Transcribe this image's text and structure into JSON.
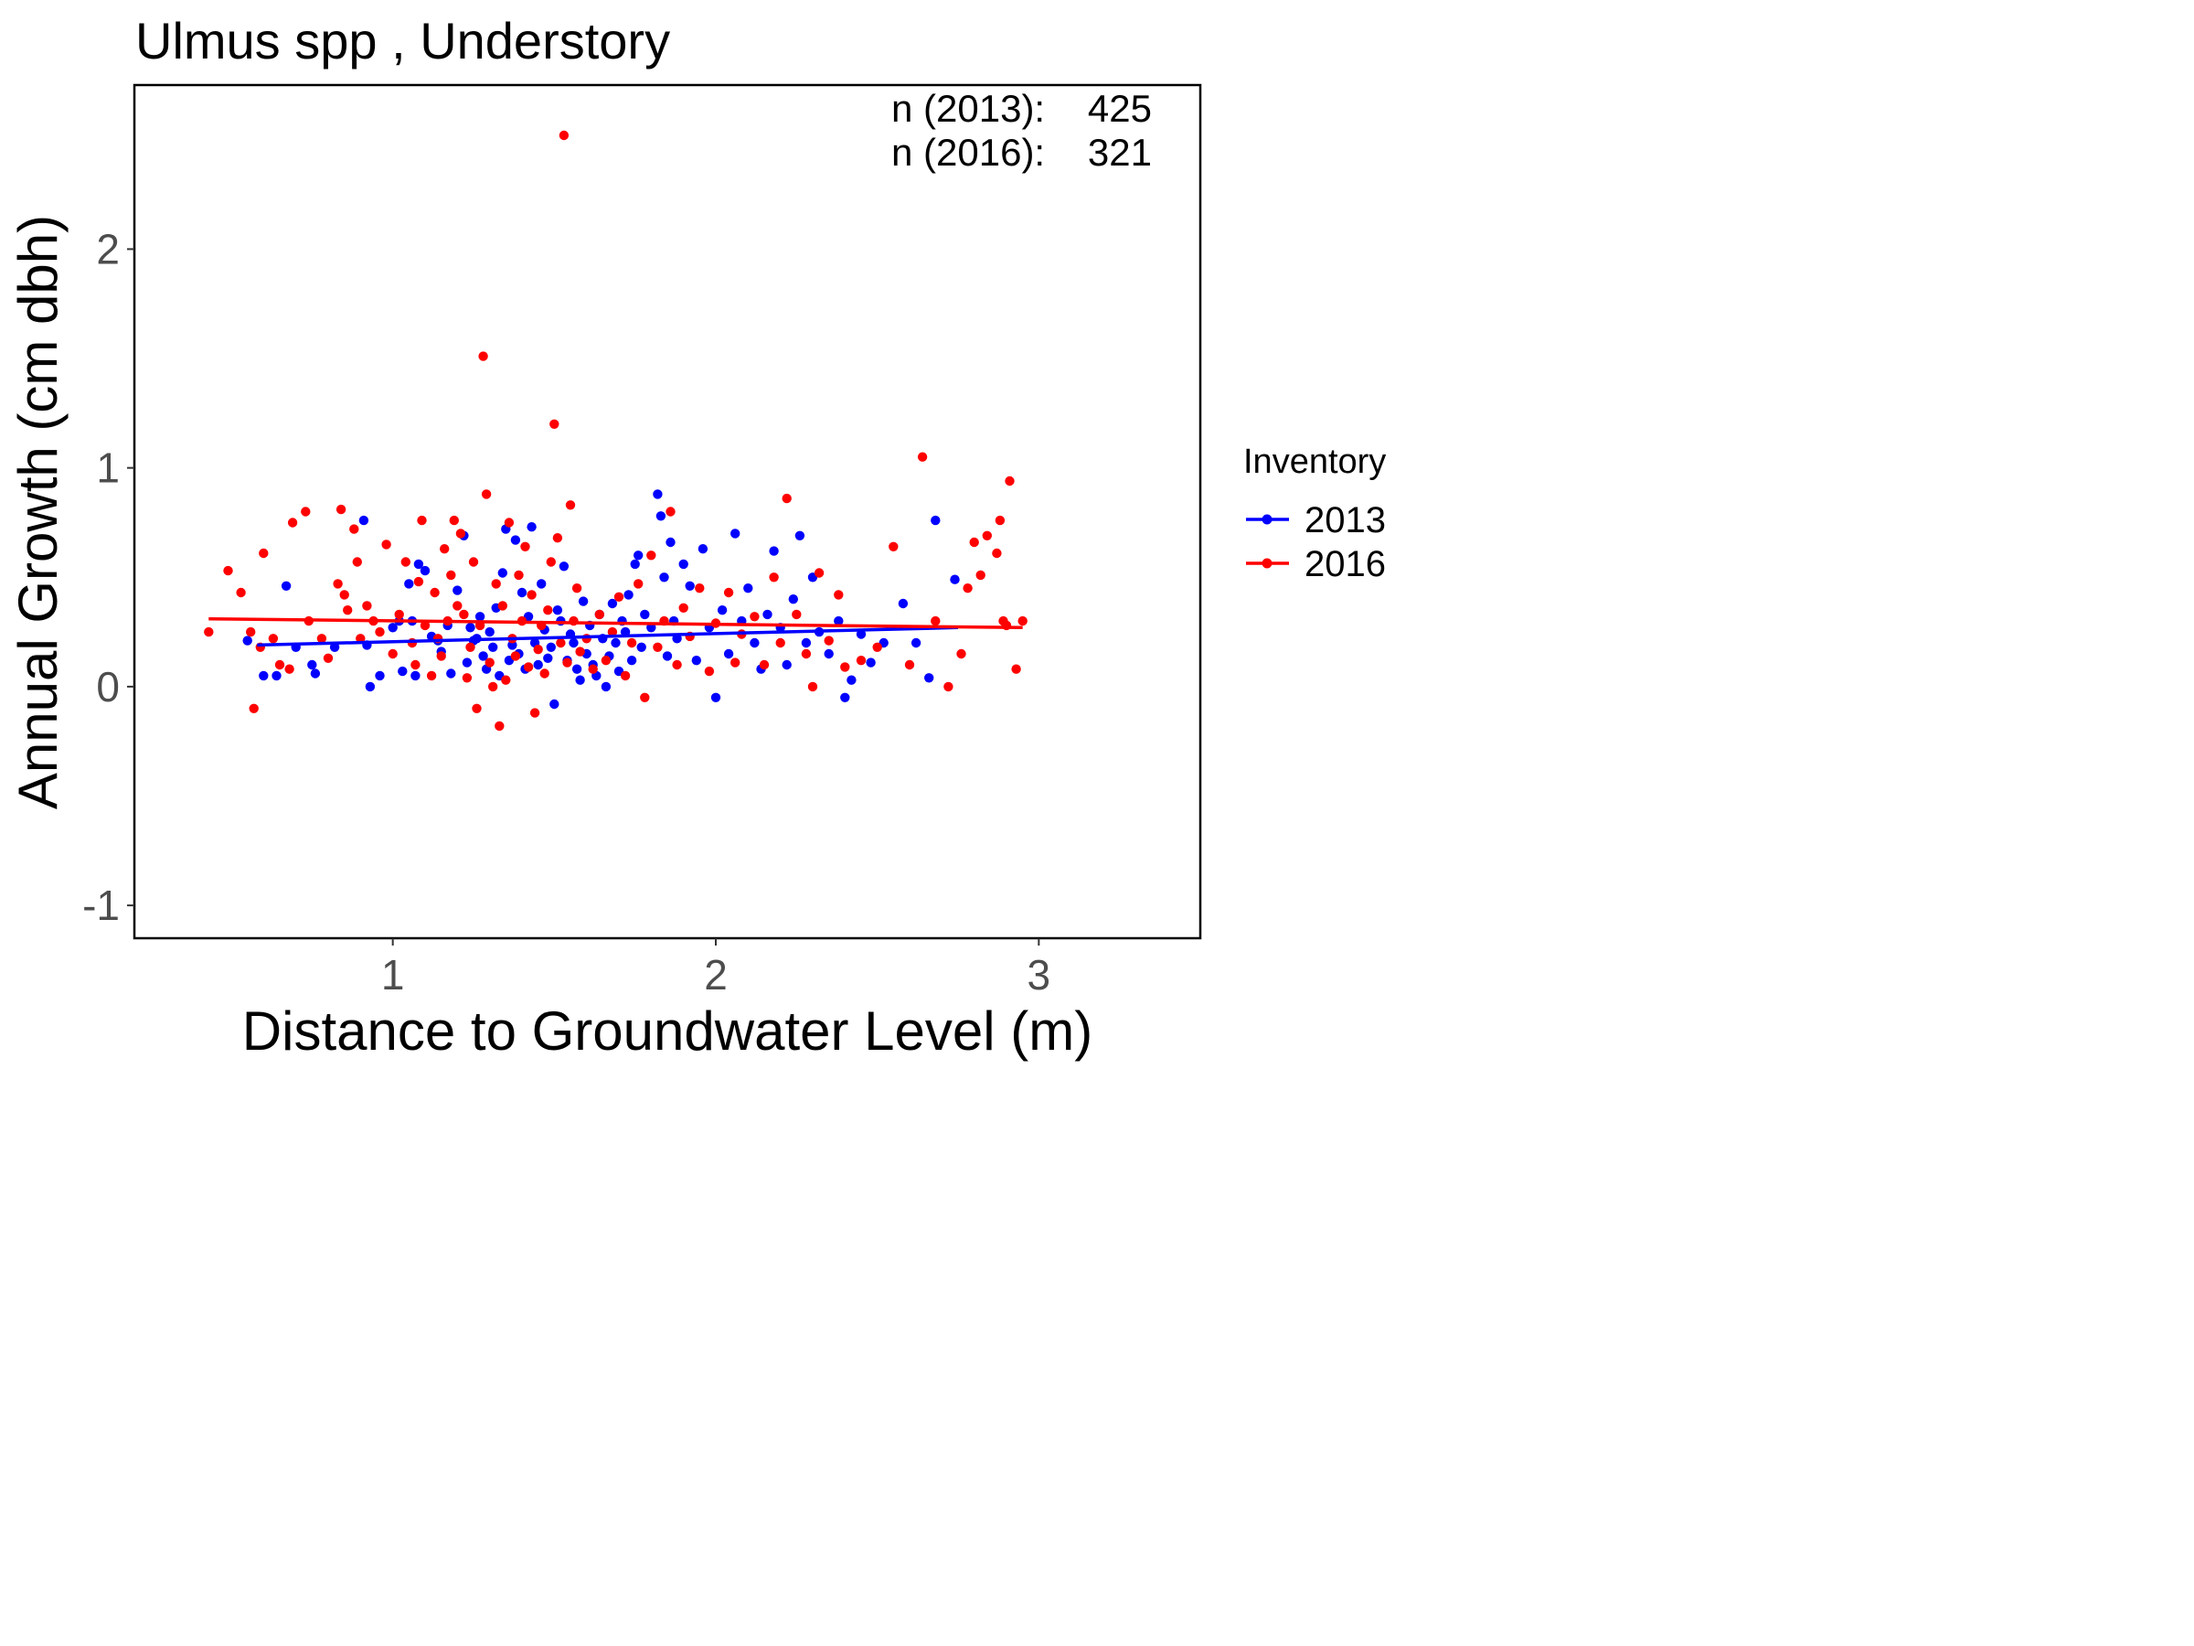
{
  "chart_data": {
    "type": "scatter",
    "title": "Ulmus spp ,  Understory",
    "xlabel": "Distance to Groundwater Level (m)",
    "ylabel": "Annual Growth (cm dbh)",
    "xlim": [
      0.2,
      3.5
    ],
    "ylim": [
      -1.15,
      2.75
    ],
    "x_ticks": [
      1,
      2,
      3
    ],
    "y_ticks": [
      -1,
      0,
      1,
      2
    ],
    "x_tick_labels": [
      "1",
      "2",
      "3"
    ],
    "y_tick_labels": [
      "-1",
      "0",
      "1",
      "2"
    ],
    "grid": false,
    "legend": {
      "title": "Inventory",
      "position": "right"
    },
    "annotations": [
      {
        "label": "n (2013):",
        "value": "425"
      },
      {
        "label": "n (2016):",
        "value": "321"
      }
    ],
    "series": [
      {
        "name": "2013",
        "color": "#0000ff",
        "trend": {
          "x": [
            0.58,
            2.75
          ],
          "y": [
            0.19,
            0.27
          ]
        },
        "points": [
          [
            0.55,
            0.21
          ],
          [
            0.6,
            0.05
          ],
          [
            0.64,
            0.05
          ],
          [
            0.67,
            0.46
          ],
          [
            0.7,
            0.18
          ],
          [
            0.75,
            0.1
          ],
          [
            0.76,
            0.06
          ],
          [
            0.82,
            0.18
          ],
          [
            0.91,
            0.76
          ],
          [
            0.92,
            0.19
          ],
          [
            0.93,
            0.0
          ],
          [
            0.96,
            0.05
          ],
          [
            1.0,
            0.27
          ],
          [
            1.02,
            0.3
          ],
          [
            1.03,
            0.07
          ],
          [
            1.05,
            0.47
          ],
          [
            1.06,
            0.3
          ],
          [
            1.07,
            0.05
          ],
          [
            1.08,
            0.56
          ],
          [
            1.1,
            0.53
          ],
          [
            1.12,
            0.23
          ],
          [
            1.14,
            0.21
          ],
          [
            1.15,
            0.16
          ],
          [
            1.17,
            0.28
          ],
          [
            1.18,
            0.06
          ],
          [
            1.2,
            0.44
          ],
          [
            1.22,
            0.69
          ],
          [
            1.23,
            0.11
          ],
          [
            1.24,
            0.27
          ],
          [
            1.25,
            0.21
          ],
          [
            1.26,
            0.22
          ],
          [
            1.27,
            0.32
          ],
          [
            1.28,
            0.14
          ],
          [
            1.29,
            0.08
          ],
          [
            1.3,
            0.25
          ],
          [
            1.31,
            0.18
          ],
          [
            1.32,
            0.36
          ],
          [
            1.33,
            0.05
          ],
          [
            1.34,
            0.52
          ],
          [
            1.35,
            0.72
          ],
          [
            1.36,
            0.12
          ],
          [
            1.37,
            0.19
          ],
          [
            1.38,
            0.67
          ],
          [
            1.39,
            0.15
          ],
          [
            1.4,
            0.43
          ],
          [
            1.41,
            0.08
          ],
          [
            1.42,
            0.32
          ],
          [
            1.43,
            0.73
          ],
          [
            1.44,
            0.2
          ],
          [
            1.45,
            0.1
          ],
          [
            1.46,
            0.47
          ],
          [
            1.47,
            0.26
          ],
          [
            1.48,
            0.13
          ],
          [
            1.49,
            0.18
          ],
          [
            1.5,
            -0.08
          ],
          [
            1.51,
            0.35
          ],
          [
            1.52,
            0.3
          ],
          [
            1.53,
            0.55
          ],
          [
            1.54,
            0.12
          ],
          [
            1.55,
            0.24
          ],
          [
            1.56,
            0.2
          ],
          [
            1.57,
            0.08
          ],
          [
            1.58,
            0.03
          ],
          [
            1.59,
            0.39
          ],
          [
            1.6,
            0.15
          ],
          [
            1.61,
            0.28
          ],
          [
            1.62,
            0.1
          ],
          [
            1.63,
            0.05
          ],
          [
            1.64,
            0.33
          ],
          [
            1.65,
            0.22
          ],
          [
            1.66,
            0.0
          ],
          [
            1.67,
            0.14
          ],
          [
            1.68,
            0.38
          ],
          [
            1.69,
            0.2
          ],
          [
            1.7,
            0.07
          ],
          [
            1.71,
            0.3
          ],
          [
            1.72,
            0.25
          ],
          [
            1.73,
            0.42
          ],
          [
            1.74,
            0.12
          ],
          [
            1.75,
            0.56
          ],
          [
            1.76,
            0.6
          ],
          [
            1.77,
            0.18
          ],
          [
            1.78,
            0.33
          ],
          [
            1.8,
            0.27
          ],
          [
            1.82,
            0.88
          ],
          [
            1.83,
            0.78
          ],
          [
            1.84,
            0.5
          ],
          [
            1.85,
            0.14
          ],
          [
            1.86,
            0.66
          ],
          [
            1.87,
            0.3
          ],
          [
            1.88,
            0.22
          ],
          [
            1.9,
            0.56
          ],
          [
            1.92,
            0.46
          ],
          [
            1.94,
            0.12
          ],
          [
            1.96,
            0.63
          ],
          [
            1.98,
            0.27
          ],
          [
            2.0,
            -0.05
          ],
          [
            2.02,
            0.35
          ],
          [
            2.04,
            0.15
          ],
          [
            2.06,
            0.7
          ],
          [
            2.08,
            0.3
          ],
          [
            2.1,
            0.45
          ],
          [
            2.12,
            0.2
          ],
          [
            2.14,
            0.08
          ],
          [
            2.16,
            0.33
          ],
          [
            2.18,
            0.62
          ],
          [
            2.2,
            0.27
          ],
          [
            2.22,
            0.1
          ],
          [
            2.24,
            0.4
          ],
          [
            2.26,
            0.69
          ],
          [
            2.28,
            0.2
          ],
          [
            2.3,
            0.5
          ],
          [
            2.32,
            0.25
          ],
          [
            2.35,
            0.15
          ],
          [
            2.38,
            0.3
          ],
          [
            2.4,
            -0.05
          ],
          [
            2.42,
            0.03
          ],
          [
            2.45,
            0.24
          ],
          [
            2.48,
            0.11
          ],
          [
            2.52,
            0.2
          ],
          [
            2.58,
            0.38
          ],
          [
            2.62,
            0.2
          ],
          [
            2.66,
            0.04
          ],
          [
            2.68,
            0.76
          ],
          [
            2.74,
            0.49
          ]
        ]
      },
      {
        "name": "2016",
        "color": "#ff0000",
        "trend": {
          "x": [
            0.43,
            2.95
          ],
          "y": [
            0.31,
            0.27
          ]
        },
        "points": [
          [
            0.43,
            0.25
          ],
          [
            0.49,
            0.53
          ],
          [
            0.53,
            0.43
          ],
          [
            0.56,
            0.25
          ],
          [
            0.57,
            -0.1
          ],
          [
            0.59,
            0.18
          ],
          [
            0.6,
            0.61
          ],
          [
            0.63,
            0.22
          ],
          [
            0.65,
            0.1
          ],
          [
            0.68,
            0.08
          ],
          [
            0.69,
            0.75
          ],
          [
            0.73,
            0.8
          ],
          [
            0.74,
            0.3
          ],
          [
            0.78,
            0.22
          ],
          [
            0.8,
            0.13
          ],
          [
            0.83,
            0.47
          ],
          [
            0.84,
            0.81
          ],
          [
            0.85,
            0.42
          ],
          [
            0.86,
            0.35
          ],
          [
            0.88,
            0.72
          ],
          [
            0.89,
            0.57
          ],
          [
            0.9,
            0.22
          ],
          [
            0.92,
            0.37
          ],
          [
            0.94,
            0.3
          ],
          [
            0.96,
            0.25
          ],
          [
            0.98,
            0.65
          ],
          [
            1.0,
            0.15
          ],
          [
            1.02,
            0.33
          ],
          [
            1.04,
            0.57
          ],
          [
            1.06,
            0.2
          ],
          [
            1.07,
            0.1
          ],
          [
            1.08,
            0.48
          ],
          [
            1.09,
            0.76
          ],
          [
            1.1,
            0.28
          ],
          [
            1.12,
            0.05
          ],
          [
            1.13,
            0.43
          ],
          [
            1.14,
            0.22
          ],
          [
            1.15,
            0.14
          ],
          [
            1.16,
            0.63
          ],
          [
            1.17,
            0.3
          ],
          [
            1.18,
            0.51
          ],
          [
            1.19,
            0.76
          ],
          [
            1.2,
            0.37
          ],
          [
            1.21,
            0.7
          ],
          [
            1.22,
            0.33
          ],
          [
            1.23,
            0.04
          ],
          [
            1.24,
            0.18
          ],
          [
            1.25,
            0.57
          ],
          [
            1.26,
            -0.1
          ],
          [
            1.27,
            0.28
          ],
          [
            1.28,
            1.51
          ],
          [
            1.29,
            0.88
          ],
          [
            1.3,
            0.11
          ],
          [
            1.31,
            0.0
          ],
          [
            1.32,
            0.47
          ],
          [
            1.33,
            -0.18
          ],
          [
            1.34,
            0.37
          ],
          [
            1.35,
            0.03
          ],
          [
            1.36,
            0.75
          ],
          [
            1.37,
            0.22
          ],
          [
            1.38,
            0.14
          ],
          [
            1.39,
            0.51
          ],
          [
            1.4,
            0.3
          ],
          [
            1.41,
            0.64
          ],
          [
            1.42,
            0.09
          ],
          [
            1.43,
            0.42
          ],
          [
            1.44,
            -0.12
          ],
          [
            1.45,
            0.17
          ],
          [
            1.46,
            0.28
          ],
          [
            1.47,
            0.06
          ],
          [
            1.48,
            0.35
          ],
          [
            1.49,
            0.57
          ],
          [
            1.5,
            1.2
          ],
          [
            1.51,
            0.68
          ],
          [
            1.52,
            0.2
          ],
          [
            1.53,
            2.52
          ],
          [
            1.54,
            0.11
          ],
          [
            1.55,
            0.83
          ],
          [
            1.56,
            0.3
          ],
          [
            1.57,
            0.45
          ],
          [
            1.58,
            0.16
          ],
          [
            1.6,
            0.22
          ],
          [
            1.62,
            0.08
          ],
          [
            1.64,
            0.33
          ],
          [
            1.66,
            0.12
          ],
          [
            1.68,
            0.25
          ],
          [
            1.7,
            0.41
          ],
          [
            1.72,
            0.05
          ],
          [
            1.74,
            0.2
          ],
          [
            1.76,
            0.47
          ],
          [
            1.78,
            -0.05
          ],
          [
            1.8,
            0.6
          ],
          [
            1.82,
            0.18
          ],
          [
            1.84,
            0.3
          ],
          [
            1.86,
            0.8
          ],
          [
            1.88,
            0.1
          ],
          [
            1.9,
            0.36
          ],
          [
            1.92,
            0.23
          ],
          [
            1.95,
            0.45
          ],
          [
            1.98,
            0.07
          ],
          [
            2.0,
            0.29
          ],
          [
            2.04,
            0.43
          ],
          [
            2.06,
            0.11
          ],
          [
            2.08,
            0.24
          ],
          [
            2.12,
            0.32
          ],
          [
            2.15,
            0.1
          ],
          [
            2.18,
            0.5
          ],
          [
            2.2,
            0.2
          ],
          [
            2.22,
            0.86
          ],
          [
            2.25,
            0.33
          ],
          [
            2.28,
            0.15
          ],
          [
            2.3,
            0.0
          ],
          [
            2.32,
            0.52
          ],
          [
            2.35,
            0.21
          ],
          [
            2.38,
            0.42
          ],
          [
            2.4,
            0.09
          ],
          [
            2.45,
            0.12
          ],
          [
            2.5,
            0.18
          ],
          [
            2.55,
            0.64
          ],
          [
            2.6,
            0.1
          ],
          [
            2.64,
            1.05
          ],
          [
            2.68,
            0.3
          ],
          [
            2.72,
            0.0
          ],
          [
            2.76,
            0.15
          ],
          [
            2.78,
            0.45
          ],
          [
            2.8,
            0.66
          ],
          [
            2.82,
            0.51
          ],
          [
            2.84,
            0.69
          ],
          [
            2.87,
            0.61
          ],
          [
            2.88,
            0.76
          ],
          [
            2.89,
            0.3
          ],
          [
            2.9,
            0.28
          ],
          [
            2.91,
            0.94
          ],
          [
            2.93,
            0.08
          ],
          [
            2.95,
            0.3
          ]
        ]
      }
    ]
  }
}
